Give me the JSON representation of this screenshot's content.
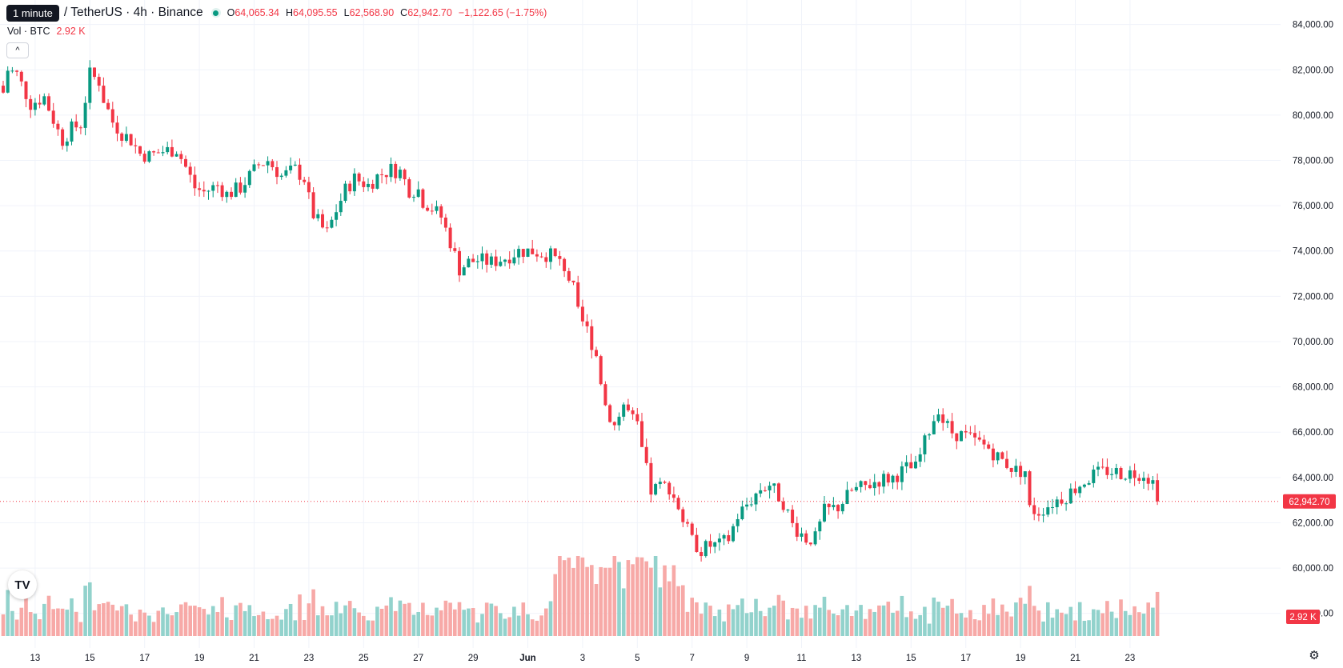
{
  "legend": {
    "tooltip": "1 minute",
    "symbol": "/ TetherUS · 4h · Binance",
    "open_label": "O",
    "open": "64,065.34",
    "high_label": "H",
    "high": "64,095.55",
    "low_label": "L",
    "low": "62,568.90",
    "close_label": "C",
    "close": "62,942.70",
    "change": "−1,122.65 (−1.75%)"
  },
  "volume": {
    "label": "Vol · BTC",
    "value": "2.92 K"
  },
  "icons": {
    "collapse": "chevron-up-icon",
    "logo": "tradingview-logo-icon",
    "settings": "gear-icon"
  },
  "colors": {
    "up": "#089981",
    "down": "#f23645",
    "up_volume": "#92d2cc",
    "down_volume": "#f7a9a7",
    "grid": "#f0f3fa",
    "text": "#131722"
  },
  "chart_data": {
    "type": "candlestick",
    "y_axis": {
      "min": 57000,
      "max": 84800,
      "ticks": [
        "84,000.00",
        "82,000.00",
        "80,000.00",
        "78,000.00",
        "76,000.00",
        "74,000.00",
        "72,000.00",
        "70,000.00",
        "68,000.00",
        "66,000.00",
        "64,000.00",
        "62,000.00",
        "60,000.00",
        "58,000.00"
      ],
      "tick_values": [
        84000,
        82000,
        80000,
        78000,
        76000,
        74000,
        72000,
        70000,
        68000,
        66000,
        64000,
        62000,
        60000,
        58000
      ]
    },
    "x_axis": {
      "labels": [
        "13",
        "15",
        "17",
        "19",
        "21",
        "23",
        "25",
        "27",
        "29",
        "Jun",
        "3",
        "5",
        "7",
        "9",
        "11",
        "13",
        "15",
        "17",
        "19",
        "21",
        "23"
      ],
      "label_bar_index": [
        7,
        19,
        31,
        43,
        55,
        67,
        79,
        91,
        103,
        115,
        127,
        139,
        151,
        163,
        175,
        187,
        199,
        211,
        223,
        235,
        247
      ]
    },
    "last_price_label": "62,942.70",
    "last_price": 62942.7,
    "volume_label": "2.92 K",
    "grid": true,
    "close_points": [
      [
        0,
        81000
      ],
      [
        1,
        82000
      ],
      [
        3,
        81800
      ],
      [
        6,
        80500
      ],
      [
        9,
        80800
      ],
      [
        12,
        79300
      ],
      [
        13,
        78900
      ],
      [
        15,
        79400
      ],
      [
        17,
        79600
      ],
      [
        19,
        81800
      ],
      [
        21,
        81500
      ],
      [
        22,
        80700
      ],
      [
        24,
        79700
      ],
      [
        26,
        79200
      ],
      [
        28,
        78900
      ],
      [
        30,
        78300
      ],
      [
        32,
        78200
      ],
      [
        35,
        78400
      ],
      [
        38,
        78500
      ],
      [
        40,
        77700
      ],
      [
        42,
        76800
      ],
      [
        44,
        76600
      ],
      [
        47,
        76900
      ],
      [
        49,
        76500
      ],
      [
        52,
        76800
      ],
      [
        54,
        77300
      ],
      [
        56,
        77800
      ],
      [
        58,
        78000
      ],
      [
        61,
        77300
      ],
      [
        64,
        77600
      ],
      [
        66,
        77200
      ],
      [
        67,
        76300
      ],
      [
        68,
        75600
      ],
      [
        70,
        75000
      ],
      [
        71,
        74800
      ],
      [
        73,
        75800
      ],
      [
        75,
        76700
      ],
      [
        77,
        77200
      ],
      [
        80,
        76900
      ],
      [
        82,
        77300
      ],
      [
        85,
        77600
      ],
      [
        87,
        77500
      ],
      [
        89,
        76700
      ],
      [
        91,
        76700
      ],
      [
        92,
        76200
      ],
      [
        94,
        75900
      ],
      [
        96,
        75500
      ],
      [
        98,
        74400
      ],
      [
        100,
        73200
      ],
      [
        102,
        73500
      ],
      [
        104,
        73600
      ],
      [
        107,
        73500
      ],
      [
        110,
        73700
      ],
      [
        113,
        74000
      ],
      [
        116,
        74000
      ],
      [
        120,
        73800
      ],
      [
        123,
        73300
      ],
      [
        125,
        72300
      ],
      [
        126,
        71200
      ],
      [
        128,
        70500
      ],
      [
        130,
        69400
      ],
      [
        132,
        67200
      ],
      [
        134,
        66300
      ],
      [
        136,
        67200
      ],
      [
        139,
        66200
      ],
      [
        140,
        65200
      ],
      [
        142,
        63400
      ],
      [
        144,
        63600
      ],
      [
        146,
        63600
      ],
      [
        148,
        62700
      ],
      [
        149,
        62100
      ],
      [
        151,
        61200
      ],
      [
        153,
        60800
      ],
      [
        155,
        61000
      ],
      [
        157,
        61000
      ],
      [
        159,
        61300
      ],
      [
        161,
        62300
      ],
      [
        163,
        62800
      ],
      [
        166,
        63500
      ],
      [
        168,
        63700
      ],
      [
        171,
        62900
      ],
      [
        173,
        61900
      ],
      [
        176,
        61300
      ],
      [
        178,
        61300
      ],
      [
        180,
        62500
      ],
      [
        183,
        62700
      ],
      [
        186,
        63400
      ],
      [
        189,
        63600
      ],
      [
        192,
        63900
      ],
      [
        195,
        64000
      ],
      [
        198,
        64400
      ],
      [
        200,
        64400
      ],
      [
        203,
        66100
      ],
      [
        205,
        67100
      ],
      [
        206,
        66500
      ],
      [
        208,
        66000
      ],
      [
        211,
        65800
      ],
      [
        214,
        65500
      ],
      [
        216,
        65300
      ],
      [
        218,
        64900
      ],
      [
        220,
        64600
      ],
      [
        222,
        64300
      ],
      [
        224,
        64300
      ],
      [
        225,
        62600
      ],
      [
        227,
        62500
      ],
      [
        230,
        62900
      ],
      [
        233,
        63200
      ],
      [
        236,
        63700
      ],
      [
        239,
        64100
      ],
      [
        242,
        64300
      ],
      [
        245,
        64200
      ],
      [
        248,
        64200
      ],
      [
        250,
        64200
      ],
      [
        252,
        63800
      ],
      [
        253,
        62943
      ]
    ],
    "volume_scale_max": 100
  }
}
